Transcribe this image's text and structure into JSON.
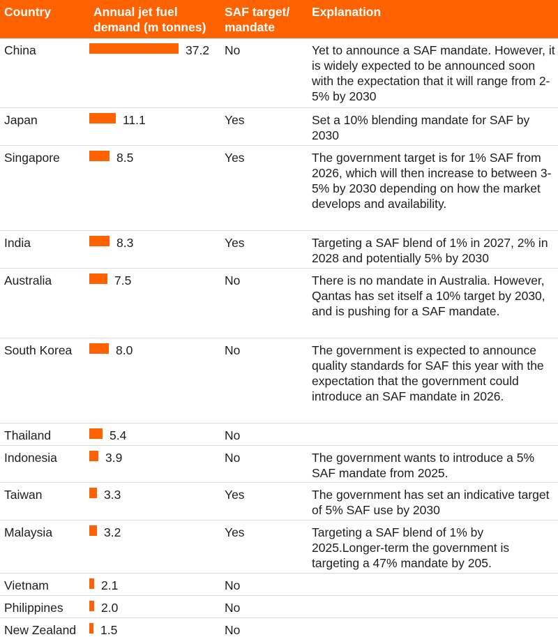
{
  "header": {
    "country": "Country",
    "demand": "Annual jet fuel\ndemand (m tonnes)",
    "saf": "SAF target/\nmandate",
    "explanation": "Explanation"
  },
  "colors": {
    "accent": "#ff6200",
    "header_text": "#ffffff",
    "row_divider": "#dedede",
    "text": "#1e1e1e"
  },
  "chart_data": {
    "type": "table",
    "columns": [
      "Country",
      "Annual jet fuel demand (m tonnes)",
      "SAF target/ mandate",
      "Explanation"
    ],
    "bar_column": "Annual jet fuel demand (m tonnes)",
    "categories": [
      "China",
      "Japan",
      "Singapore",
      "India",
      "Australia",
      "South Korea",
      "Thailand",
      "Indonesia",
      "Taiwan",
      "Malaysia",
      "Vietnam",
      "Philippines",
      "New Zealand"
    ],
    "rows": [
      {
        "country": "China",
        "demand": 37.2,
        "demand_label": "37.2",
        "saf": "No",
        "explanation": "Yet to announce a SAF mandate. However, it is widely expected to be announced soon with the expectation that it will range from 2-5% by 2030"
      },
      {
        "country": "Japan",
        "demand": 11.1,
        "demand_label": "11.1",
        "saf": "Yes",
        "explanation": "Set a 10% blending mandate for SAF by 2030"
      },
      {
        "country": "Singapore",
        "demand": 8.5,
        "demand_label": "8.5",
        "saf": "Yes",
        "explanation": "The government target is for 1% SAF from 2026, which will then increase to between 3-5% by 2030 depending on how the market develops and availability."
      },
      {
        "country": "India",
        "demand": 8.3,
        "demand_label": "8.3",
        "saf": "Yes",
        "explanation": "Targeting a SAF blend of 1% in 2027, 2% in 2028 and potentially 5% by 2030"
      },
      {
        "country": "Australia",
        "demand": 7.5,
        "demand_label": "7.5",
        "saf": "No",
        "explanation": "There is no mandate in Australia. However, Qantas has set itself a 10% target by 2030, and is pushing for a SAF mandate."
      },
      {
        "country": "South Korea",
        "demand": 8.0,
        "demand_label": "8.0",
        "saf": "No",
        "explanation": "The government is expected to announce quality standards for SAF this year with the expectation that the government could introduce an SAF mandate in 2026."
      },
      {
        "country": "Thailand",
        "demand": 5.4,
        "demand_label": "5.4",
        "saf": "No",
        "explanation": ""
      },
      {
        "country": "Indonesia",
        "demand": 3.9,
        "demand_label": "3.9",
        "saf": "No",
        "explanation": "The government wants to introduce a 5% SAF mandate from 2025."
      },
      {
        "country": "Taiwan",
        "demand": 3.3,
        "demand_label": "3.3",
        "saf": "Yes",
        "explanation": "The government has set an indicative target of 5% SAF use by 2030"
      },
      {
        "country": "Malaysia",
        "demand": 3.2,
        "demand_label": "3.2",
        "saf": "Yes",
        "explanation": "Targeting a SAF blend of 1% by 2025.Longer-term the government is targeting a 47% mandate by 205."
      },
      {
        "country": "Vietnam",
        "demand": 2.1,
        "demand_label": "2.1",
        "saf": "No",
        "explanation": ""
      },
      {
        "country": "Philippines",
        "demand": 2.0,
        "demand_label": "2.0",
        "saf": "No",
        "explanation": ""
      },
      {
        "country": "New Zealand",
        "demand": 1.5,
        "demand_label": "1.5",
        "saf": "No",
        "explanation": ""
      }
    ]
  }
}
